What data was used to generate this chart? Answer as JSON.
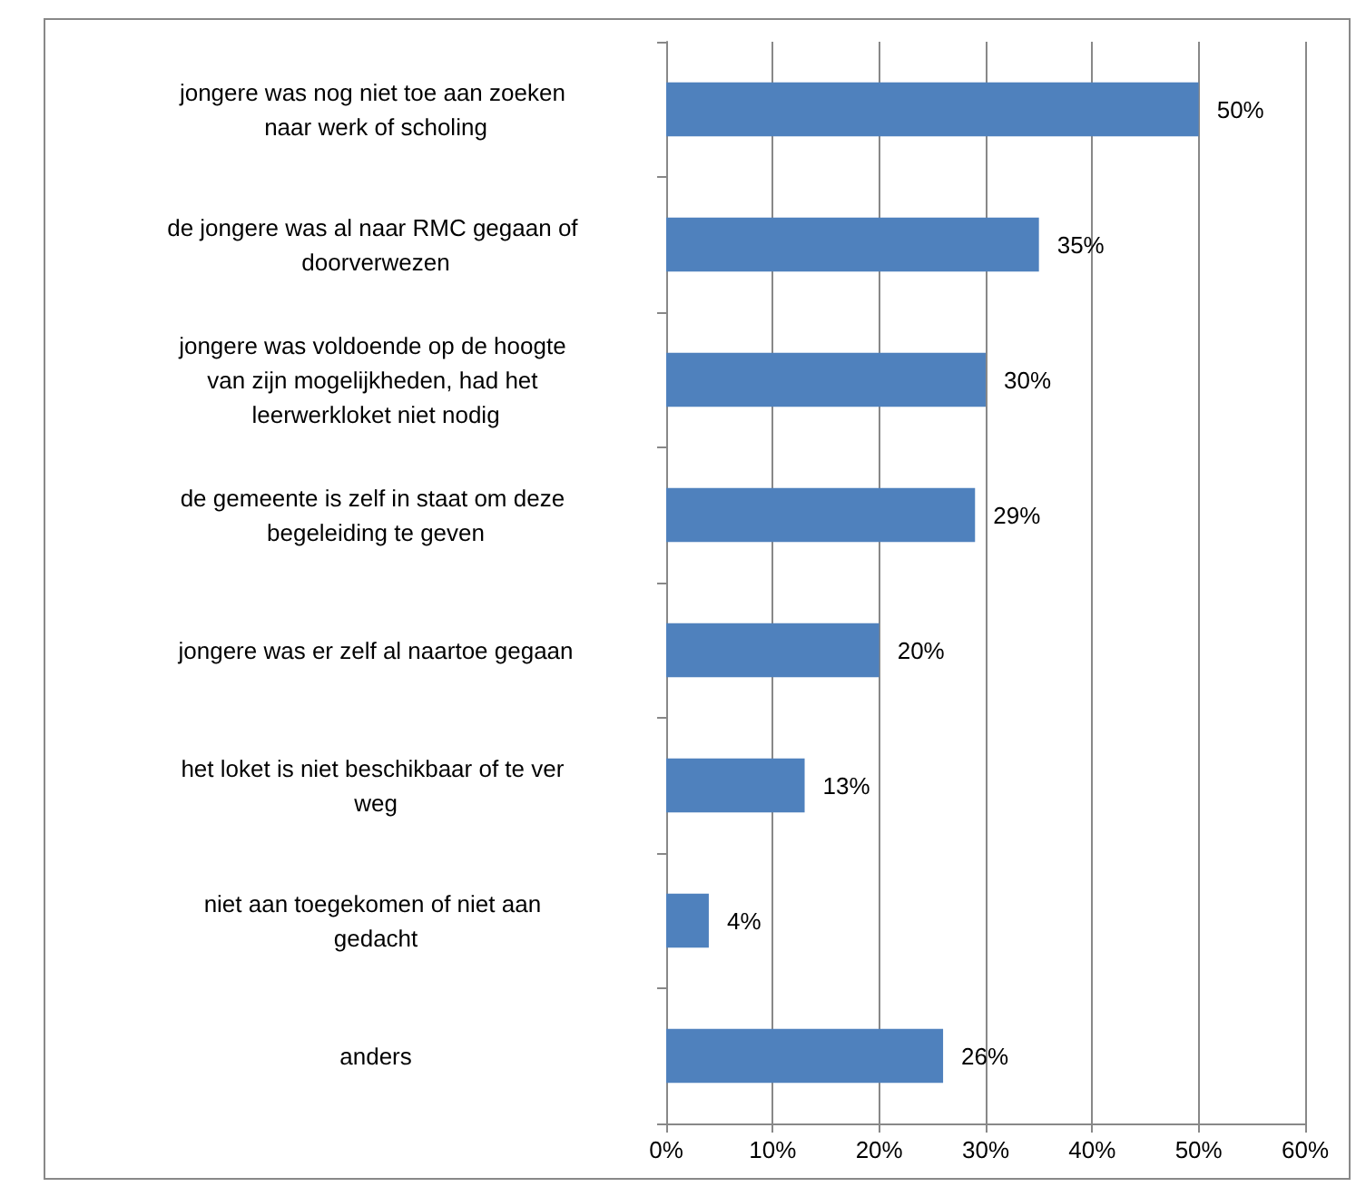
{
  "chart_data": {
    "type": "bar",
    "orientation": "horizontal",
    "categories": [
      "jongere was nog niet toe aan zoeken naar werk of scholing",
      "de jongere was al naar RMC gegaan of doorverwezen",
      "jongere was voldoende op de hoogte van zijn mogelijkheden, had het leerwerkloket niet nodig",
      "de gemeente is zelf in staat om deze begeleiding te geven",
      "jongere was er zelf al naartoe gegaan",
      "het loket is niet beschikbaar of te ver weg",
      "niet aan toegekomen of niet aan gedacht",
      "anders"
    ],
    "values": [
      50,
      35,
      30,
      29,
      20,
      13,
      4,
      26
    ],
    "value_labels": [
      "50%",
      "35%",
      "30%",
      "29%",
      "20%",
      "13%",
      "4%",
      "26%"
    ],
    "color": "#4f81bd",
    "xlim": [
      0,
      60
    ],
    "xticks": [
      {
        "value": 0,
        "label": "0%"
      },
      {
        "value": 10,
        "label": "10%"
      },
      {
        "value": 20,
        "label": "20%"
      },
      {
        "value": 30,
        "label": "30%"
      },
      {
        "value": 40,
        "label": "40%"
      },
      {
        "value": 50,
        "label": "50%"
      },
      {
        "value": 60,
        "label": "60%"
      }
    ],
    "grid": "x"
  }
}
